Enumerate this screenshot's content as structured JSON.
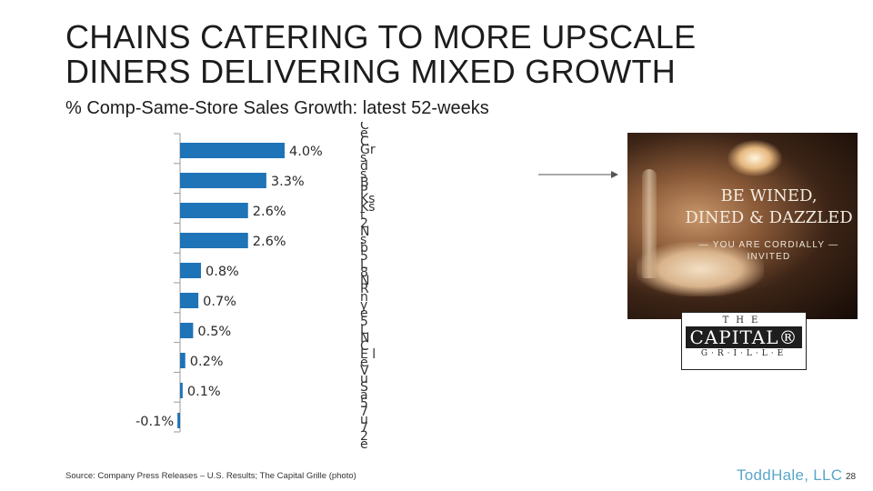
{
  "title": {
    "line1": "CHAINS CATERING TO MORE UPSCALE",
    "line2": "DINERS DELIVERING MIXED GROWTH"
  },
  "subtitle": "% Comp-Same-Store Sales Growth: latest 52-weeks",
  "chart_data": {
    "type": "bar",
    "orientation": "horizontal",
    "categories": [
      "",
      "",
      "",
      "",
      "",
      "",
      "",
      "",
      "",
      ""
    ],
    "values": [
      4.0,
      3.3,
      2.6,
      2.6,
      0.8,
      0.7,
      0.5,
      0.2,
      0.1,
      -0.1
    ],
    "labels": [
      "4.0%",
      "3.3%",
      "2.6%",
      "2.6%",
      "0.8%",
      "0.7%",
      "0.5%",
      "0.2%",
      "0.1%",
      "-0.1%"
    ],
    "xlim": [
      -0.1,
      4.0
    ],
    "grid": false,
    "color": "#1f73b7"
  },
  "overlapping_category_text": "C e C Gr s d s B P Ks Kst 2 N s b 5 L 8 N R n y e 5 L N C E le V u S a 5 7 u 7 2 e y 6 a 3 F 0 O p y s 8 o 4 d t C e n E y c H e E l r F u 4 1 n a O e 7 i h",
  "photo": {
    "tagline_line1": "BE WINED,",
    "tagline_line2": "DINED & DAZZLED",
    "invite_line1": "— YOU ARE CORDIALLY —",
    "invite_line2": "INVITED"
  },
  "logo": {
    "line1": "THE",
    "line2": "CAPITAL®",
    "line3": "G·R·I·L·L·E"
  },
  "source": "Source: Company Press Releases – U.S. Results; The Capital Grille (photo)",
  "brand": "ToddHale, LLC",
  "page_number": "28"
}
